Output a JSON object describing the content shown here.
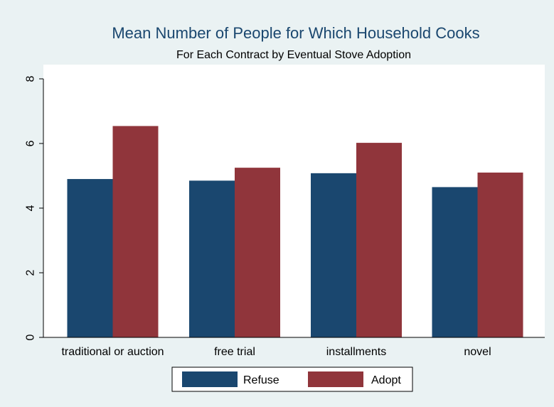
{
  "chart_data": {
    "type": "bar",
    "title": "Mean Number of People for Which Household Cooks",
    "subtitle": "For Each Contract by Eventual Stove Adoption",
    "xlabel": "",
    "ylabel": "",
    "categories": [
      "traditional or auction",
      "free trial",
      "installments",
      "novel"
    ],
    "series": [
      {
        "name": "Refuse",
        "values": [
          4.9,
          4.85,
          5.08,
          4.65
        ]
      },
      {
        "name": "Adopt",
        "values": [
          6.54,
          5.25,
          6.02,
          5.1
        ]
      }
    ],
    "ylim": [
      0,
      8
    ],
    "yticks": [
      0,
      2,
      4,
      6,
      8
    ],
    "grid": false,
    "legend": "bottom",
    "colors": {
      "Refuse": "#1a476f",
      "Adopt": "#90353b",
      "page_background": "#eaf2f3",
      "plot_background": "#ffffff"
    }
  }
}
